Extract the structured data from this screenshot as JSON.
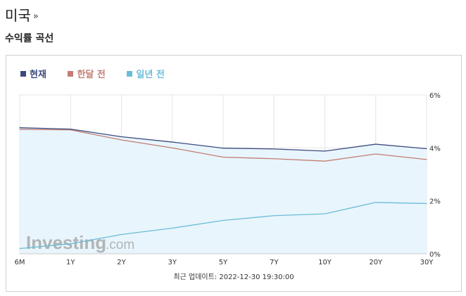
{
  "header": {
    "country": "미국",
    "country_arrow": "»",
    "section_title": "수익률 곡선"
  },
  "colors": {
    "current": "#3c4a7e",
    "month_ago": "#c47c72",
    "year_ago": "#6cbcd8",
    "fill": "#e8f5fc",
    "grid": "#e4e4e4",
    "axis_text": "#333333"
  },
  "watermark": {
    "brand": "Investing",
    "suffix": ".com"
  },
  "footer": {
    "update_label": "최근 업데이트: 2022-12-30 19:30:00"
  },
  "chart_data": {
    "type": "line",
    "categories": [
      "6M",
      "1Y",
      "2Y",
      "3Y",
      "5Y",
      "7Y",
      "10Y",
      "20Y",
      "30Y"
    ],
    "series": [
      {
        "name": "현재",
        "key": "current",
        "values": [
          4.76,
          4.71,
          4.42,
          4.22,
          3.99,
          3.96,
          3.88,
          4.14,
          3.97
        ]
      },
      {
        "name": "한달 전",
        "key": "month_ago",
        "values": [
          4.7,
          4.68,
          4.3,
          4.0,
          3.65,
          3.59,
          3.5,
          3.77,
          3.56
        ]
      },
      {
        "name": "일년 전",
        "key": "year_ago",
        "values": [
          0.2,
          0.38,
          0.73,
          0.97,
          1.26,
          1.44,
          1.51,
          1.94,
          1.9
        ]
      }
    ],
    "ylim": [
      0,
      6
    ],
    "yticks": [
      "0%",
      "2%",
      "4%",
      "6%"
    ],
    "ytick_values": [
      0,
      2,
      4,
      6
    ],
    "grid": true,
    "legend_position": "top-left",
    "y_axis_position": "right"
  }
}
